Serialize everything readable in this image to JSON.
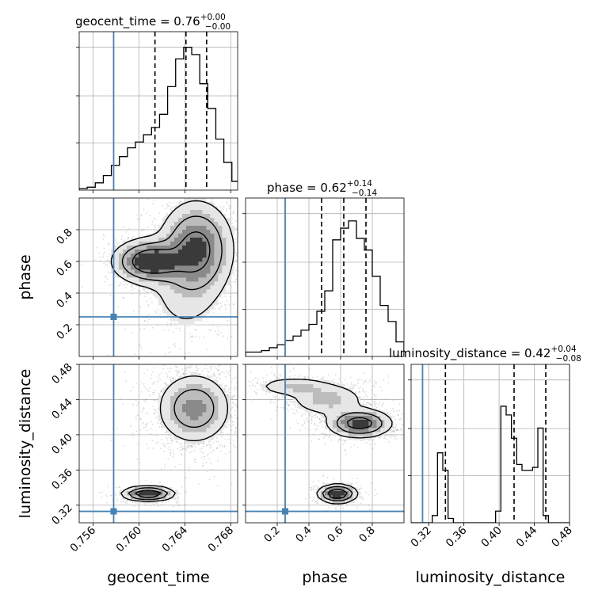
{
  "chart_data": [
    {
      "type": "histogram",
      "id": "hist-geocent",
      "param": "geocent_time",
      "title": {
        "text": "geocent_time = 0.76",
        "sup": "+0.00",
        "sub": "−0.00"
      },
      "xlim": [
        0.7548,
        0.7686
      ],
      "bins": [
        0.7548,
        0.7555,
        0.7562,
        0.7569,
        0.7576,
        0.7583,
        0.759,
        0.7597,
        0.7604,
        0.7611,
        0.7618,
        0.7625,
        0.7632,
        0.7639,
        0.7646,
        0.7653,
        0.766,
        0.7667,
        0.7674,
        0.7681,
        0.7688
      ],
      "counts": [
        0.01,
        0.02,
        0.05,
        0.1,
        0.17,
        0.23,
        0.29,
        0.33,
        0.38,
        0.43,
        0.52,
        0.71,
        0.9,
        0.98,
        0.93,
        0.73,
        0.56,
        0.35,
        0.19,
        0.06
      ],
      "quantiles": [
        0.7614,
        0.7641,
        0.7659
      ],
      "truth": 0.7578
    },
    {
      "type": "histogram",
      "id": "hist-phase",
      "param": "phase",
      "title": {
        "text": "phase = 0.62",
        "sup": "+0.14",
        "sub": "−0.14"
      },
      "xlim": [
        0.0,
        1.0
      ],
      "bins": [
        0.0,
        0.05,
        0.1,
        0.15,
        0.2,
        0.25,
        0.3,
        0.35,
        0.4,
        0.45,
        0.5,
        0.55,
        0.6,
        0.65,
        0.7,
        0.75,
        0.8,
        0.85,
        0.9,
        0.95,
        1.0
      ],
      "counts": [
        0.03,
        0.03,
        0.04,
        0.06,
        0.08,
        0.11,
        0.14,
        0.18,
        0.22,
        0.31,
        0.45,
        0.8,
        0.88,
        0.93,
        0.81,
        0.73,
        0.55,
        0.35,
        0.24,
        0.1
      ],
      "quantiles": [
        0.48,
        0.62,
        0.76
      ],
      "truth": 0.25
    },
    {
      "type": "histogram",
      "id": "hist-lumdist",
      "param": "luminosity_distance",
      "title": {
        "text": "luminosity_distance = 0.42",
        "sup": "+0.04",
        "sub": "−0.08"
      },
      "xlim": [
        0.3,
        0.48
      ],
      "bins": [
        0.3,
        0.306,
        0.312,
        0.318,
        0.324,
        0.33,
        0.336,
        0.342,
        0.348,
        0.354,
        0.36,
        0.366,
        0.372,
        0.378,
        0.384,
        0.39,
        0.396,
        0.402,
        0.408,
        0.414,
        0.42,
        0.426,
        0.432,
        0.438,
        0.444,
        0.45,
        0.456,
        0.462,
        0.468,
        0.474,
        0.48
      ],
      "counts": [
        0,
        0,
        0,
        0,
        0.05,
        0.48,
        0.36,
        0.03,
        0,
        0,
        0,
        0,
        0,
        0,
        0,
        0,
        0.08,
        0.8,
        0.74,
        0.58,
        0.4,
        0.36,
        0.36,
        0.38,
        0.65,
        0.05,
        0,
        0,
        0,
        0
      ],
      "quantiles": [
        0.339,
        0.417,
        0.453
      ],
      "truth": 0.313
    },
    {
      "type": "scatter_contour",
      "id": "joint-geo-phase",
      "x_param": "geocent_time",
      "y_param": "phase",
      "xlim": [
        0.7548,
        0.7686
      ],
      "ylim": [
        0.0,
        1.0
      ],
      "truth": [
        0.7578,
        0.25
      ],
      "blobs": [
        {
          "cx": 0.765,
          "cy": 0.68,
          "sx": 0.0016,
          "sy": 0.15,
          "n": 1100
        },
        {
          "cx": 0.761,
          "cy": 0.6,
          "sx": 0.0016,
          "sy": 0.07,
          "n": 650
        },
        {
          "cx": 0.764,
          "cy": 0.4,
          "sx": 0.002,
          "sy": 0.18,
          "n": 300
        }
      ]
    },
    {
      "type": "scatter_contour",
      "id": "joint-geo-lum",
      "x_param": "geocent_time",
      "y_param": "luminosity_distance",
      "xlim": [
        0.7548,
        0.7686
      ],
      "ylim": [
        0.3,
        0.48
      ],
      "truth": [
        0.7578,
        0.313
      ],
      "blobs": [
        {
          "cx": 0.7648,
          "cy": 0.43,
          "sx": 0.0016,
          "sy": 0.02,
          "n": 1600
        },
        {
          "cx": 0.7608,
          "cy": 0.333,
          "sx": 0.0011,
          "sy": 0.004,
          "n": 420
        }
      ]
    },
    {
      "type": "scatter_contour",
      "id": "joint-phase-lum",
      "x_param": "phase",
      "y_param": "luminosity_distance",
      "xlim": [
        0.0,
        1.0
      ],
      "ylim": [
        0.3,
        0.48
      ],
      "truth": [
        0.25,
        0.313
      ],
      "blobs": [
        {
          "cx": 0.72,
          "cy": 0.413,
          "sx": 0.1,
          "sy": 0.008,
          "n": 900
        },
        {
          "cx": 0.52,
          "cy": 0.44,
          "sx": 0.13,
          "sy": 0.01,
          "n": 500
        },
        {
          "cx": 0.3,
          "cy": 0.455,
          "sx": 0.13,
          "sy": 0.006,
          "n": 250
        },
        {
          "cx": 0.58,
          "cy": 0.333,
          "sx": 0.06,
          "sy": 0.005,
          "n": 420
        }
      ]
    }
  ],
  "axes": {
    "geocent_time": {
      "label": "geocent_time",
      "ticks": [
        0.756,
        0.76,
        0.764,
        0.768
      ],
      "tick_labels": [
        "0.756",
        "0.760",
        "0.764",
        "0.768"
      ]
    },
    "phase": {
      "label": "phase",
      "ticks": [
        0.2,
        0.4,
        0.6,
        0.8
      ],
      "tick_labels": [
        "0.2",
        "0.4",
        "0.6",
        "0.8"
      ]
    },
    "luminosity_distance": {
      "label": "luminosity_distance",
      "ticks": [
        0.32,
        0.36,
        0.4,
        0.44,
        0.48
      ],
      "tick_labels": [
        "0.32",
        "0.36",
        "0.40",
        "0.44",
        "0.48"
      ]
    }
  },
  "colors": {
    "truth": "#4682b4",
    "hist": "#000000",
    "points": "#808080",
    "grid": "#b0b0b0"
  },
  "grid": true
}
